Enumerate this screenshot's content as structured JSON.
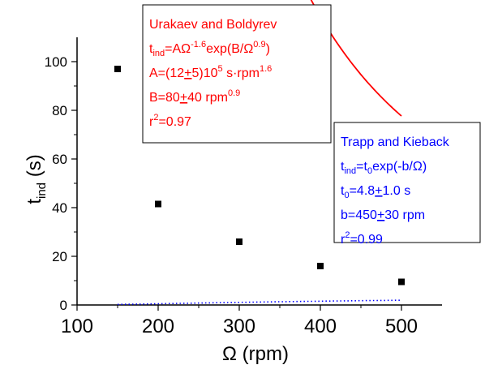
{
  "chart_data": {
    "type": "scatter",
    "xlabel": {
      "symbol": "Ω",
      "unit": "(rpm)"
    },
    "ylabel": {
      "main": "t",
      "sub": "ind",
      "unit": "(s)"
    },
    "xlim": [
      100,
      550
    ],
    "ylim": [
      0,
      110
    ],
    "x_ticks": [
      100,
      200,
      300,
      400,
      500
    ],
    "y_ticks": [
      0,
      20,
      40,
      60,
      80,
      100
    ],
    "grid": false,
    "colors": {
      "points": "#000000",
      "urakaev": "#ff0000",
      "trapp": "#0000ff",
      "axes": "#000000"
    },
    "points": [
      {
        "x": 150,
        "y": 97
      },
      {
        "x": 200,
        "y": 41.5
      },
      {
        "x": 300,
        "y": 26
      },
      {
        "x": 400,
        "y": 16
      },
      {
        "x": 500,
        "y": 9.5
      }
    ],
    "fits": [
      {
        "id": "urakaev",
        "style": "solid",
        "model": "A*Omega^-1.6*exp(B/Omega^0.9)",
        "params": {
          "A": 1200000,
          "B": 80
        },
        "annotation": {
          "title": "Urakaev and Boldyrev",
          "lines": [
            [
              {
                "t": "t"
              },
              {
                "t": "ind",
                "sub": true
              },
              {
                "t": "=AΩ"
              },
              {
                "t": "-1.6",
                "sup": true
              },
              {
                "t": "exp(B/Ω"
              },
              {
                "t": "0.9",
                "sup": true
              },
              {
                "t": ")"
              }
            ],
            [
              {
                "t": "A=(12"
              },
              {
                "t": "+",
                "u": true
              },
              {
                "t": "5)10"
              },
              {
                "t": "5",
                "sup": true
              },
              {
                "t": " s·rpm"
              },
              {
                "t": "1.6",
                "sup": true
              }
            ],
            [
              {
                "t": "B=80"
              },
              {
                "t": "+",
                "u": true
              },
              {
                "t": "40 rpm"
              },
              {
                "t": "0.9",
                "sup": true
              }
            ],
            [
              {
                "t": "r"
              },
              {
                "t": "2",
                "sup": true
              },
              {
                "t": "=0.97"
              }
            ]
          ]
        }
      },
      {
        "id": "trapp",
        "style": "dotted",
        "model": "t0*exp(-b/Omega)",
        "params": {
          "t0": 4.8,
          "b": 450
        },
        "annotation": {
          "title": "Trapp and Kieback",
          "lines": [
            [
              {
                "t": "t"
              },
              {
                "t": "ind",
                "sub": true
              },
              {
                "t": "=t"
              },
              {
                "t": "0",
                "sub": true
              },
              {
                "t": "exp(-b/Ω)"
              }
            ],
            [
              {
                "t": "t"
              },
              {
                "t": "0",
                "sub": true
              },
              {
                "t": "=4.8"
              },
              {
                "t": "+",
                "u": true
              },
              {
                "t": "1.0 s"
              }
            ],
            [
              {
                "t": "b=450"
              },
              {
                "t": "+",
                "u": true
              },
              {
                "t": "30 rpm"
              }
            ],
            [
              {
                "t": "r"
              },
              {
                "t": "2",
                "sup": true
              },
              {
                "t": "=0.99"
              }
            ]
          ]
        }
      }
    ]
  }
}
